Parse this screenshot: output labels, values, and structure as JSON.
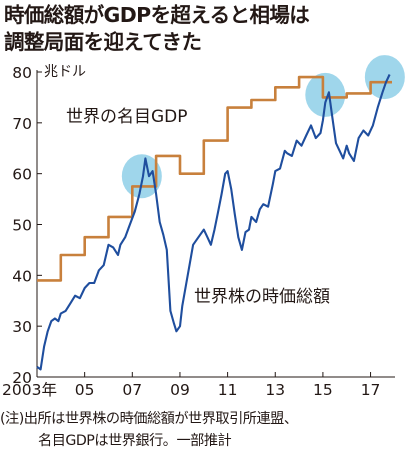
{
  "title": {
    "line1": "時価総額がGDPを超えると相場は",
    "line2": "調整局面を迎えてきた"
  },
  "note": {
    "line1": "(注)出所は世界株の時価総額が世界取引所連盟、",
    "line2": "名目GDPは世界銀行。一部推計"
  },
  "colors": {
    "gdp_line": "#c8803c",
    "market_cap_line": "#1f4e9e",
    "highlight": "#8ecfe8"
  },
  "chart_data": {
    "type": "line",
    "title": "時価総額がGDPを超えると相場は調整局面を迎えてきた",
    "ylabel": "兆ドル",
    "ylim": [
      20,
      80
    ],
    "xlim": [
      2003.0,
      2017.9
    ],
    "yticks": [
      "20",
      "30",
      "40",
      "50",
      "60",
      "70",
      "80"
    ],
    "xticks": [
      {
        "value": 2003.0,
        "label": "2003年"
      },
      {
        "value": 2005.0,
        "label": "05"
      },
      {
        "value": 2007.0,
        "label": "07"
      },
      {
        "value": 2009.0,
        "label": "09"
      },
      {
        "value": 2011.0,
        "label": "11"
      },
      {
        "value": 2013.0,
        "label": "13"
      },
      {
        "value": 2015.0,
        "label": "15"
      },
      {
        "value": 2017.0,
        "label": "17"
      }
    ],
    "grid": false,
    "legend": "inline labels",
    "highlights": [
      {
        "x": 2007.4,
        "y": 59.5
      },
      {
        "x": 2015.1,
        "y": 75.5
      },
      {
        "x": 2017.6,
        "y": 79.0
      }
    ],
    "series": [
      {
        "name": "世界の名目GDP",
        "step": true,
        "x": [
          2003.0,
          2004.0,
          2005.0,
          2006.0,
          2007.0,
          2008.0,
          2009.0,
          2010.0,
          2011.0,
          2012.0,
          2013.0,
          2014.0,
          2015.0,
          2016.0,
          2017.0,
          2017.9
        ],
        "y": [
          39,
          44,
          47.5,
          51.5,
          57.5,
          63.5,
          60,
          66.5,
          73,
          74.5,
          77,
          79,
          75,
          75.8,
          78,
          78
        ]
      },
      {
        "name": "世界株の時価総額",
        "x": [
          2003.0,
          2003.15,
          2003.3,
          2003.45,
          2003.6,
          2003.75,
          2003.9,
          2004.0,
          2004.2,
          2004.4,
          2004.6,
          2004.8,
          2005.0,
          2005.2,
          2005.4,
          2005.6,
          2005.8,
          2006.0,
          2006.2,
          2006.4,
          2006.5,
          2006.7,
          2006.9,
          2007.1,
          2007.3,
          2007.45,
          2007.55,
          2007.7,
          2007.85,
          2008.0,
          2008.15,
          2008.3,
          2008.45,
          2008.6,
          2008.75,
          2008.85,
          2009.0,
          2009.1,
          2009.25,
          2009.4,
          2009.55,
          2009.7,
          2009.85,
          2010.0,
          2010.15,
          2010.3,
          2010.45,
          2010.6,
          2010.75,
          2010.9,
          2011.0,
          2011.15,
          2011.3,
          2011.45,
          2011.6,
          2011.75,
          2011.9,
          2012.0,
          2012.2,
          2012.35,
          2012.5,
          2012.7,
          2012.9,
          2013.0,
          2013.2,
          2013.4,
          2013.5,
          2013.7,
          2013.9,
          2014.1,
          2014.3,
          2014.5,
          2014.7,
          2014.9,
          2015.0,
          2015.1,
          2015.25,
          2015.4,
          2015.55,
          2015.7,
          2015.85,
          2016.0,
          2016.1,
          2016.3,
          2016.5,
          2016.7,
          2016.9,
          2017.1,
          2017.3,
          2017.5,
          2017.65,
          2017.8
        ],
        "y": [
          22,
          21.5,
          26,
          29,
          31,
          31.5,
          31,
          32.5,
          33,
          34.5,
          36,
          35.5,
          37.5,
          38.5,
          38.5,
          41,
          42,
          46,
          45.5,
          44,
          46,
          47.5,
          50,
          52.5,
          56,
          59.5,
          63,
          59.5,
          60.5,
          56,
          50.5,
          48,
          45,
          33,
          30.5,
          29,
          30,
          34,
          38,
          42,
          46,
          47,
          48,
          49,
          47.5,
          46,
          49,
          52.5,
          56,
          60,
          60.5,
          57,
          52,
          47.5,
          45,
          48.5,
          49,
          51.5,
          50.5,
          53,
          54,
          53.5,
          58,
          60.5,
          61,
          64.5,
          64,
          63.5,
          66.5,
          65.5,
          67.5,
          69.5,
          67,
          68,
          70.5,
          74,
          76,
          71,
          66,
          64.5,
          63,
          65.5,
          64,
          62.5,
          67,
          68.5,
          67.5,
          69.5,
          73,
          76,
          78,
          79.5
        ]
      }
    ]
  }
}
